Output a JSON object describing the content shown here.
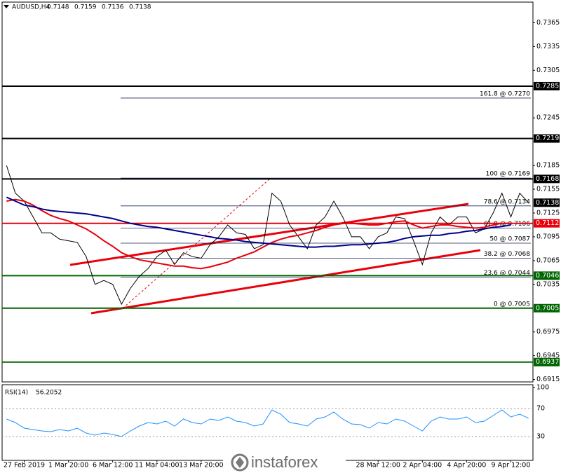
{
  "chart_data": [
    {
      "type": "line",
      "symbol": "AUDUSD,H4",
      "ohlc": [
        0.7148,
        0.7159,
        0.7136,
        0.7138
      ],
      "categories": [
        null,
        null,
        "27 Feb 2019",
        null,
        null,
        null,
        null,
        "1 Mar 20:00",
        null,
        null,
        null,
        null,
        "6 Mar 12:00",
        null,
        null,
        null,
        null,
        "11 Mar 04:00",
        null,
        null,
        null,
        null,
        "13 Mar 20:00",
        null,
        null,
        null,
        null,
        null,
        null,
        null,
        null,
        null,
        null,
        null,
        null,
        null,
        null,
        null,
        null,
        null,
        null,
        null,
        "28 Mar 12:00",
        null,
        null,
        null,
        null,
        "2 Apr 04:00",
        null,
        null,
        null,
        null,
        "4 Apr 20:00",
        null,
        null,
        null,
        null,
        "9 Apr 12:00",
        null,
        null
      ],
      "series": [
        {
          "color": "#000000",
          "values": [
            0.7185,
            0.715,
            0.714,
            0.712,
            0.71,
            0.71,
            0.7092,
            0.709,
            0.7088,
            0.707,
            0.7035,
            0.704,
            0.7035,
            0.701,
            0.703,
            0.7045,
            0.7055,
            0.707,
            0.7078,
            0.706,
            0.7075,
            0.707,
            0.7068,
            0.7085,
            0.7095,
            0.711,
            0.71,
            0.7098,
            0.708,
            0.7085,
            0.715,
            0.714,
            0.711,
            0.7095,
            0.708,
            0.711,
            0.712,
            0.714,
            0.712,
            0.7095,
            0.7095,
            0.708,
            0.7095,
            0.71,
            0.712,
            0.7118,
            0.709,
            0.706,
            0.71,
            0.712,
            0.711,
            0.712,
            0.712,
            0.71,
            0.7105,
            0.7125,
            0.715,
            0.712,
            0.715,
            0.7138
          ]
        },
        {
          "color": "#e8000b",
          "values": [
            0.714,
            0.7142,
            0.714,
            0.7135,
            0.7128,
            0.7122,
            0.7118,
            0.7115,
            0.711,
            0.7105,
            0.7098,
            0.709,
            0.7083,
            0.7075,
            0.707,
            0.7066,
            0.7064,
            0.7062,
            0.706,
            0.7058,
            0.7058,
            0.7056,
            0.7055,
            0.7057,
            0.706,
            0.7063,
            0.7068,
            0.7072,
            0.7076,
            0.7082,
            0.7088,
            0.7092,
            0.7095,
            0.7097,
            0.71,
            0.7103,
            0.7107,
            0.711,
            0.7112,
            0.7112,
            0.7111,
            0.711,
            0.711,
            0.7112,
            0.7114,
            0.7115,
            0.711,
            0.7106,
            0.7108,
            0.711,
            0.711,
            0.7108,
            0.7107,
            0.7106,
            0.7107,
            0.711,
            0.7112,
            0.7112,
            null,
            null
          ]
        },
        {
          "color": "#00008b",
          "values": [
            0.7145,
            0.714,
            0.7135,
            0.7133,
            0.713,
            0.7128,
            0.7127,
            0.7126,
            0.7125,
            0.7124,
            0.7122,
            0.712,
            0.7118,
            0.7115,
            0.7112,
            0.711,
            0.7108,
            0.7107,
            0.7105,
            0.7103,
            0.7101,
            0.7099,
            0.7097,
            0.7095,
            0.7093,
            0.7092,
            0.7091,
            0.7089,
            0.7088,
            0.7087,
            0.7086,
            0.7085,
            0.7084,
            0.7083,
            0.7082,
            0.7082,
            0.7083,
            0.7083,
            0.7084,
            0.7085,
            0.7085,
            0.7086,
            0.7087,
            0.7088,
            0.709,
            0.7093,
            0.7095,
            0.7096,
            0.7097,
            0.7097,
            0.7099,
            0.71,
            0.7102,
            0.7103,
            0.7105,
            0.7107,
            0.7108,
            0.711,
            null,
            null
          ]
        }
      ],
      "ylim": [
        0.6912,
        0.7391
      ],
      "yticks": [
        0.7365,
        0.7335,
        0.7305,
        0.7245,
        0.7185,
        0.7155,
        0.7125,
        0.7095,
        0.7065,
        0.7035,
        0.6975,
        0.6945,
        0.6915
      ],
      "grid": false,
      "levels": [
        {
          "value": 0.7285,
          "color": "#000000",
          "line": true
        },
        {
          "value": 0.7219,
          "color": "#000000",
          "line": true
        },
        {
          "value": 0.7168,
          "color": "#000000",
          "line": true
        },
        {
          "value": 0.7138,
          "color": "#000000",
          "line": false
        },
        {
          "value": 0.7112,
          "color": "#e8000b",
          "line": true
        },
        {
          "value": 0.7046,
          "color": "#006400",
          "line": true
        },
        {
          "value": 0.7005,
          "color": "#006400",
          "line": true
        },
        {
          "value": 0.6937,
          "color": "#006400",
          "line": true
        }
      ],
      "fibonacci": [
        {
          "label": "161.8 @ 0.7270",
          "value": 0.727
        },
        {
          "label": "100 @ 0.7169",
          "value": 0.7169
        },
        {
          "label": "78.6 @ 0.7134",
          "value": 0.7134
        },
        {
          "label": "61.8 @ 0.7106",
          "value": 0.7106
        },
        {
          "label": "50 @ 0.7087",
          "value": 0.7087
        },
        {
          "label": "38.2 @ 0.7068",
          "value": 0.7068
        },
        {
          "label": "23.6 @ 0.7044",
          "value": 0.7044
        },
        {
          "label": "0 @ 0.7005",
          "value": 0.7005
        }
      ]
    },
    {
      "type": "line",
      "title": "RSI(14)",
      "current": 56.2052,
      "series": [
        {
          "color": "#1e90ff",
          "values": [
            55,
            50,
            42,
            40,
            38,
            37,
            40,
            38,
            42,
            35,
            32,
            35,
            33,
            30,
            38,
            45,
            50,
            48,
            52,
            45,
            55,
            50,
            48,
            55,
            53,
            58,
            52,
            50,
            45,
            48,
            68,
            62,
            50,
            48,
            45,
            55,
            58,
            65,
            55,
            48,
            47,
            42,
            50,
            48,
            55,
            52,
            45,
            38,
            52,
            58,
            55,
            55,
            58,
            50,
            52,
            60,
            68,
            58,
            62,
            56.2052
          ]
        }
      ],
      "ylim": [
        0,
        100
      ],
      "yticks": [
        100,
        70,
        30
      ]
    }
  ],
  "watermark": "instaforex"
}
